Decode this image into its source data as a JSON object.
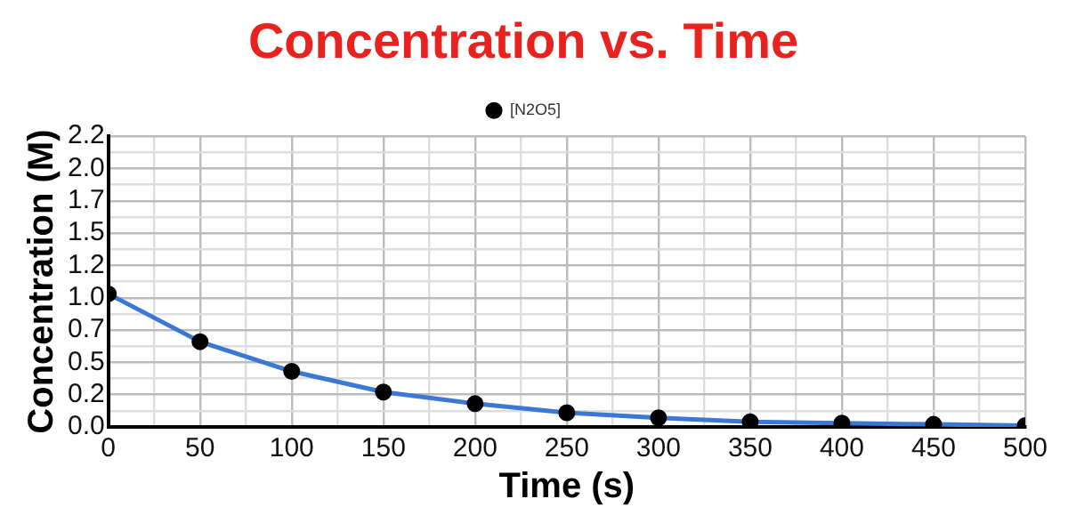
{
  "chart_data": {
    "type": "line",
    "title": "Concentration vs. Time",
    "xlabel": "Time (s)",
    "ylabel": "Concentration (M)",
    "x": [
      0,
      50,
      100,
      150,
      200,
      250,
      300,
      350,
      400,
      450,
      500
    ],
    "series": [
      {
        "name": "[N2O5]",
        "color": "#3a78d4",
        "values": [
          1.03,
          0.66,
          0.43,
          0.27,
          0.18,
          0.11,
          0.07,
          0.04,
          0.03,
          0.02,
          0.01
        ]
      }
    ],
    "xlim": [
      0,
      500
    ],
    "xticks": [
      0,
      {
        "value": 25,
        "label": null
      },
      50,
      {
        "value": 75,
        "label": null
      },
      100,
      {
        "value": 125,
        "label": null
      },
      150,
      {
        "value": 175,
        "label": null
      },
      200,
      {
        "value": 225,
        "label": null
      },
      250,
      {
        "value": 275,
        "label": null
      },
      300,
      {
        "value": 325,
        "label": null
      },
      350,
      {
        "value": 375,
        "label": null
      },
      400,
      {
        "value": 425,
        "label": null
      },
      450,
      {
        "value": 475,
        "label": null
      },
      500
    ],
    "ylim": [
      0,
      2.25
    ],
    "yticks": [
      {
        "value": 0,
        "label": "0.0"
      },
      {
        "value": 0.125,
        "label": null
      },
      {
        "value": 0.25,
        "label": "0.2"
      },
      {
        "value": 0.375,
        "label": null
      },
      {
        "value": 0.5,
        "label": "0.5"
      },
      {
        "value": 0.625,
        "label": null
      },
      {
        "value": 0.75,
        "label": "0.7"
      },
      {
        "value": 0.875,
        "label": null
      },
      {
        "value": 1,
        "label": "1.0"
      },
      {
        "value": 1.125,
        "label": null
      },
      {
        "value": 1.25,
        "label": "1.2"
      },
      {
        "value": 1.375,
        "label": null
      },
      {
        "value": 1.5,
        "label": "1.5"
      },
      {
        "value": 1.625,
        "label": null
      },
      {
        "value": 1.75,
        "label": "1.7"
      },
      {
        "value": 1.875,
        "label": null
      },
      {
        "value": 2,
        "label": "2.0"
      },
      {
        "value": 2.125,
        "label": null
      },
      {
        "value": 2.25,
        "label": "2.2"
      }
    ],
    "grid": true,
    "legend": "top",
    "marker": "circle",
    "line_style": "solid"
  }
}
